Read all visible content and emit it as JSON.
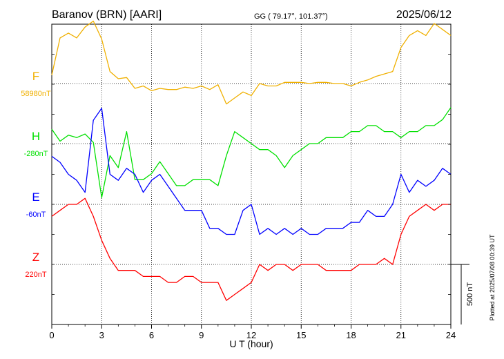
{
  "header": {
    "station": "Baranov (BRN)  [AARI]",
    "coords": "GG ( 79.17°, 101.37°)",
    "date": "2025/06/12"
  },
  "side_note": "Plotted at 2025/07/08 00:39 UT",
  "chart_data": {
    "type": "line",
    "xlabel": "U T (hour)",
    "xlim": [
      0,
      24
    ],
    "xticks": [
      "0",
      "3",
      "6",
      "9",
      "12",
      "15",
      "18",
      "21",
      "24"
    ],
    "scale_bar": {
      "label": "500 nT",
      "value_nT": 500
    },
    "series": [
      {
        "name": "F",
        "baseline_label": "58980nT",
        "baseline_nT": 58980,
        "color": "#f0b000",
        "x": [
          0,
          0.5,
          1,
          1.5,
          2,
          2.5,
          3,
          3.5,
          4,
          4.5,
          5,
          5.5,
          6,
          6.5,
          7,
          7.5,
          8,
          8.5,
          9,
          9.5,
          10,
          10.5,
          11,
          11.5,
          12,
          12.5,
          13,
          13.5,
          14,
          14.5,
          15,
          15.5,
          16,
          16.5,
          17,
          17.5,
          18,
          18.5,
          19,
          19.5,
          20,
          20.5,
          21,
          21.5,
          22,
          22.5,
          23,
          23.5,
          24
        ],
        "y": [
          70,
          380,
          420,
          380,
          470,
          520,
          370,
          100,
          40,
          50,
          -40,
          -20,
          -60,
          -40,
          -50,
          -50,
          -30,
          -40,
          -20,
          -50,
          -10,
          -170,
          -120,
          -70,
          -100,
          0,
          -20,
          -20,
          10,
          10,
          10,
          0,
          10,
          10,
          0,
          0,
          -20,
          10,
          30,
          60,
          80,
          100,
          300,
          400,
          440,
          400,
          500,
          450,
          400
        ]
      },
      {
        "name": "H",
        "baseline_label": "-280nT",
        "baseline_nT": -280,
        "color": "#00e000",
        "x": [
          0,
          0.5,
          1,
          1.5,
          2,
          2.5,
          3,
          3.5,
          4,
          4.5,
          5,
          5.5,
          6,
          6.5,
          7,
          7.5,
          8,
          8.5,
          9,
          9.5,
          10,
          10.5,
          11,
          11.5,
          12,
          12.5,
          13,
          13.5,
          14,
          14.5,
          15,
          15.5,
          16,
          16.5,
          17,
          17.5,
          18,
          18.5,
          19,
          19.5,
          20,
          20.5,
          21,
          21.5,
          22,
          22.5,
          23,
          23.5,
          24
        ],
        "y": [
          120,
          20,
          70,
          50,
          80,
          10,
          -450,
          -100,
          -200,
          100,
          -300,
          -300,
          -250,
          -150,
          -250,
          -350,
          -350,
          -300,
          -300,
          -300,
          -350,
          -100,
          100,
          50,
          0,
          -50,
          -50,
          -100,
          -200,
          -100,
          -50,
          0,
          0,
          50,
          50,
          50,
          100,
          100,
          150,
          150,
          100,
          100,
          50,
          100,
          100,
          150,
          150,
          200,
          300
        ]
      },
      {
        "name": "E",
        "baseline_label": "-60nT",
        "baseline_nT": -60,
        "color": "#0000ff",
        "x": [
          0,
          0.5,
          1,
          1.5,
          2,
          2.5,
          3,
          3.5,
          4,
          4.5,
          5,
          5.5,
          6,
          6.5,
          7,
          7.5,
          8,
          8.5,
          9,
          9.5,
          10,
          10.5,
          11,
          11.5,
          12,
          12.5,
          13,
          13.5,
          14,
          14.5,
          15,
          15.5,
          16,
          16.5,
          17,
          17.5,
          18,
          18.5,
          19,
          19.5,
          20,
          20.5,
          21,
          21.5,
          22,
          22.5,
          23,
          23.5,
          24
        ],
        "y": [
          400,
          350,
          250,
          200,
          100,
          700,
          800,
          250,
          200,
          300,
          250,
          100,
          200,
          250,
          150,
          50,
          -50,
          -50,
          -50,
          -200,
          -200,
          -250,
          -250,
          -50,
          0,
          -250,
          -200,
          -250,
          -200,
          -250,
          -200,
          -250,
          -250,
          -200,
          -200,
          -200,
          -150,
          -150,
          -50,
          -100,
          -100,
          0,
          250,
          100,
          200,
          150,
          200,
          300,
          250
        ]
      },
      {
        "name": "Z",
        "baseline_label": "220nT",
        "baseline_nT": 220,
        "color": "#ff0000",
        "x": [
          0,
          0.5,
          1,
          1.5,
          2,
          2.5,
          3,
          3.5,
          4,
          4.5,
          5,
          5.5,
          6,
          6.5,
          7,
          7.5,
          8,
          8.5,
          9,
          9.5,
          10,
          10.5,
          11,
          11.5,
          12,
          12.5,
          13,
          13.5,
          14,
          14.5,
          15,
          15.5,
          16,
          16.5,
          17,
          17.5,
          18,
          18.5,
          19,
          19.5,
          20,
          20.5,
          21,
          21.5,
          22,
          22.5,
          23,
          23.5,
          24
        ],
        "y": [
          400,
          450,
          500,
          500,
          550,
          400,
          200,
          50,
          -50,
          -50,
          -50,
          -100,
          -100,
          -100,
          -150,
          -150,
          -100,
          -100,
          -150,
          -150,
          -150,
          -300,
          -250,
          -200,
          -150,
          0,
          -50,
          0,
          0,
          -50,
          0,
          0,
          0,
          -50,
          -50,
          -50,
          -50,
          0,
          0,
          0,
          50,
          0,
          250,
          400,
          450,
          500,
          450,
          500,
          500
        ]
      }
    ]
  }
}
